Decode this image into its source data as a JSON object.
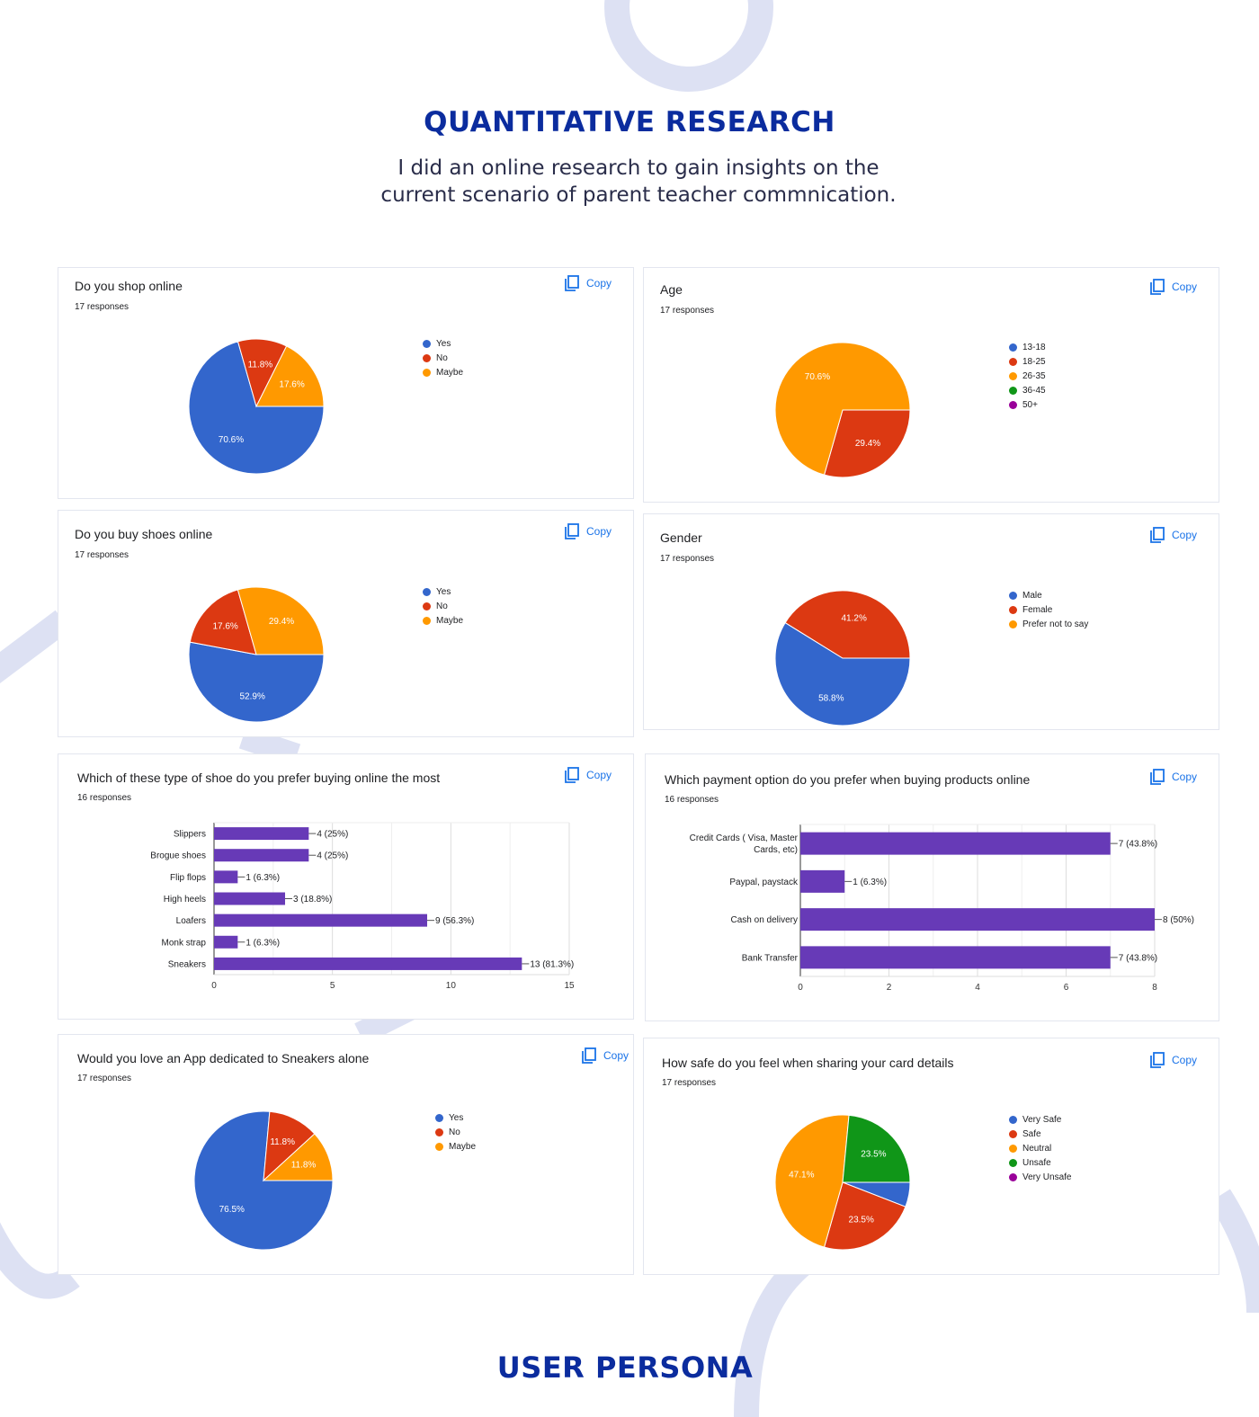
{
  "header": {
    "title": "QUANTITATIVE RESEARCH",
    "subtitle_lines": [
      "I did an online research to gain insights on the",
      "current scenario of parent teacher commnication."
    ]
  },
  "footer": {
    "title": "USER PERSONA"
  },
  "copy_label": "Copy",
  "colors": {
    "heading": "#0b2c9e",
    "blue": "#3366cc",
    "red": "#dc3912",
    "orange": "#ff9900",
    "green": "#109618",
    "purple": "#990099",
    "bar": "#673ab7",
    "deco": "#dde1f3"
  },
  "chart_data": [
    {
      "type": "pie",
      "title": "Do you shop online",
      "responses": "17 responses",
      "legend": [
        "Yes",
        "No",
        "Maybe"
      ],
      "labels": [
        "Yes",
        "No",
        "Maybe"
      ],
      "values": [
        70.6,
        11.8,
        17.6
      ],
      "data_labels": [
        "70.6%",
        "11.8%",
        "17.6%"
      ]
    },
    {
      "type": "pie",
      "title": "Age",
      "responses": "17 responses",
      "legend": [
        "13-18",
        "18-25",
        "26-35",
        "36-45",
        "50+"
      ],
      "labels": [
        "13-18",
        "18-25",
        "26-35",
        "36-45",
        "50+"
      ],
      "values": [
        0,
        29.4,
        70.6,
        0,
        0
      ],
      "data_labels": [
        "",
        "29.4%",
        "70.6%",
        "",
        ""
      ]
    },
    {
      "type": "pie",
      "title": "Do you buy shoes online",
      "responses": "17 responses",
      "legend": [
        "Yes",
        "No",
        "Maybe"
      ],
      "labels": [
        "Yes",
        "No",
        "Maybe"
      ],
      "values": [
        52.9,
        17.6,
        29.4
      ],
      "data_labels": [
        "52.9%",
        "17.6%",
        "29.4%"
      ]
    },
    {
      "type": "pie",
      "title": "Gender",
      "responses": "17 responses",
      "legend": [
        "Male",
        "Female",
        "Prefer not to say"
      ],
      "labels": [
        "Male",
        "Female",
        "Prefer not to say"
      ],
      "values": [
        58.8,
        41.2,
        0
      ],
      "data_labels": [
        "58.8%",
        "41.2%",
        ""
      ]
    },
    {
      "type": "bar",
      "orientation": "horizontal",
      "title": "Which of these type of shoe do you prefer buying online the most",
      "responses": "16 responses",
      "categories": [
        "Slippers",
        "Brogue shoes",
        "Flip flops",
        "High heels",
        "Loafers",
        "Monk strap",
        "Sneakers"
      ],
      "values": [
        4,
        4,
        1,
        3,
        9,
        1,
        13
      ],
      "data_labels": [
        "4 (25%)",
        "4 (25%)",
        "1 (6.3%)",
        "3 (18.8%)",
        "9 (56.3%)",
        "1 (6.3%)",
        "13 (81.3%)"
      ],
      "xlim": [
        0,
        15
      ],
      "xticks": [
        "0",
        "5",
        "10",
        "15"
      ],
      "grid": true
    },
    {
      "type": "bar",
      "orientation": "horizontal",
      "title": "Which payment option do you prefer when buying products online",
      "responses": "16 responses",
      "categories": [
        "Credit Cards ( Visa, Master Cards, etc)",
        "Paypal, paystack",
        "Cash on delivery",
        "Bank Transfer"
      ],
      "category_lines": [
        [
          "Credit Cards ( Visa, Master",
          "Cards, etc)"
        ],
        [
          "Paypal, paystack"
        ],
        [
          "Cash on delivery"
        ],
        [
          "Bank Transfer"
        ]
      ],
      "values": [
        7,
        1,
        8,
        7
      ],
      "data_labels": [
        "7 (43.8%)",
        "1 (6.3%)",
        "8 (50%)",
        "7 (43.8%)"
      ],
      "xlim": [
        0,
        8
      ],
      "xticks": [
        "0",
        "2",
        "4",
        "6",
        "8"
      ],
      "grid": true
    },
    {
      "type": "pie",
      "title": "Would you love an App dedicated to Sneakers alone",
      "responses": "17 responses",
      "legend": [
        "Yes",
        "No",
        "Maybe"
      ],
      "labels": [
        "Yes",
        "No",
        "Maybe"
      ],
      "values": [
        76.5,
        11.8,
        11.8
      ],
      "data_labels": [
        "76.5%",
        "11.8%",
        "11.8%"
      ]
    },
    {
      "type": "pie",
      "title": "How safe do you feel when sharing your card details",
      "responses": "17 responses",
      "legend": [
        "Very Safe",
        "Safe",
        "Neutral",
        "Unsafe",
        "Very Unsafe"
      ],
      "labels": [
        "Very Safe",
        "Safe",
        "Neutral",
        "Unsafe",
        "Very Unsafe"
      ],
      "values": [
        5.9,
        23.5,
        47.1,
        23.5,
        0
      ],
      "data_labels": [
        "",
        "23.5%",
        "47.1%",
        "23.5%",
        ""
      ]
    }
  ]
}
